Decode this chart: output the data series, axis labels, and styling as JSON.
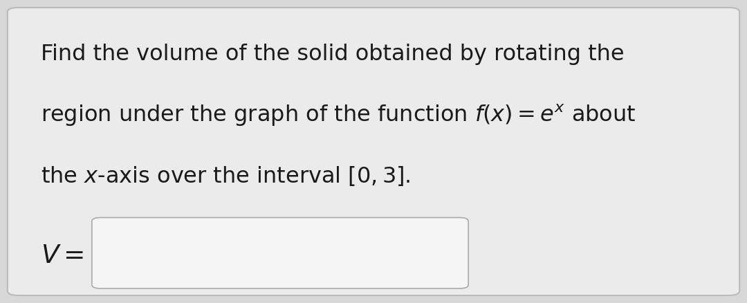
{
  "bg_color": "#d8d8d8",
  "card_bg_color": "#ebebeb",
  "card_border_color": "#bbbbbb",
  "text_color": "#1a1a1a",
  "line1": "Find the volume of the solid obtained by rotating the",
  "line2": "region under the graph of the function $f(x) = e^{x}$ about",
  "line3": "the $x$-axis over the interval $[0, 3]$.",
  "font_size_main": 23,
  "font_size_label": 27,
  "input_box_color": "#f5f5f5",
  "input_box_border_color": "#aaaaaa"
}
